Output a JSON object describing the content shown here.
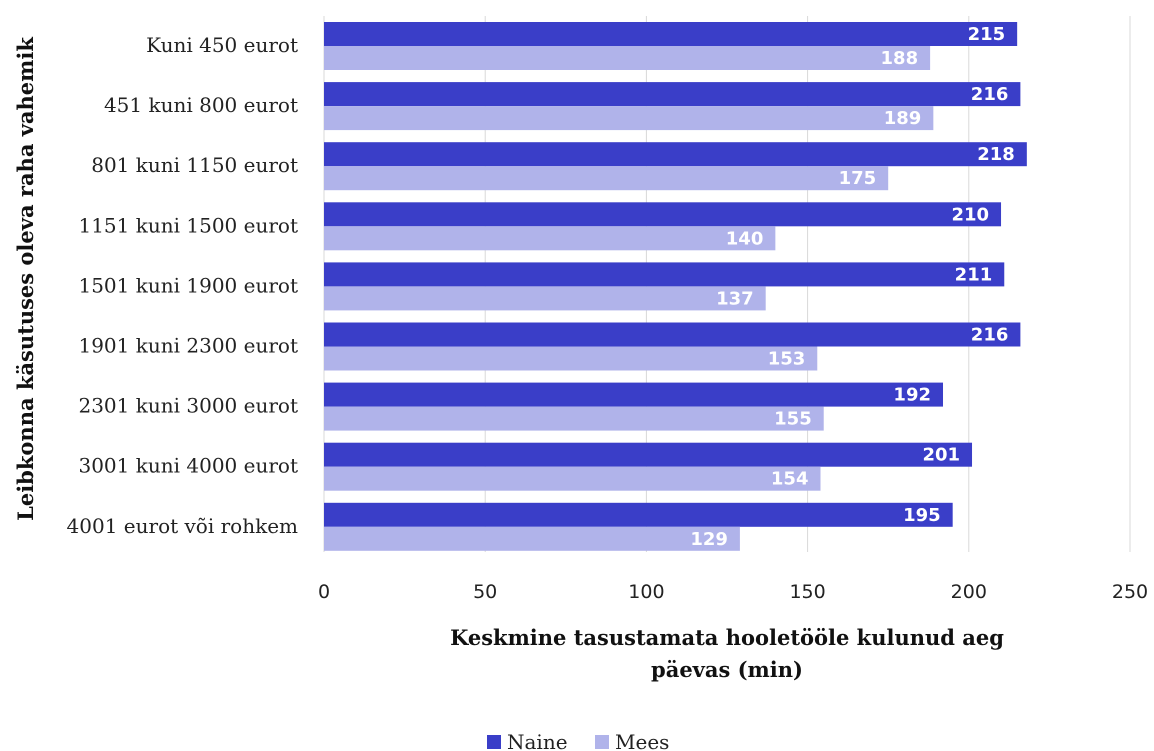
{
  "chart_data": {
    "type": "bar",
    "orientation": "horizontal",
    "categories": [
      "Kuni 450 eurot",
      "451 kuni 800 eurot",
      "801 kuni 1150 eurot",
      "1151 kuni 1500 eurot",
      "1501 kuni 1900 eurot",
      "1901 kuni 2300 eurot",
      "2301 kuni 3000 eurot",
      "3001 kuni 4000 eurot",
      "4001 eurot või rohkem"
    ],
    "series": [
      {
        "name": "Naine",
        "color": "#3a3ec8",
        "values": [
          215,
          216,
          218,
          210,
          211,
          216,
          192,
          201,
          195
        ]
      },
      {
        "name": "Mees",
        "color": "#b0b3ea",
        "values": [
          188,
          189,
          175,
          140,
          137,
          153,
          155,
          154,
          129
        ]
      }
    ],
    "xlabel_lines": [
      "Keskmine tasustamata hooletööle kulunud aeg",
      "päevas (min)"
    ],
    "ylabel": "Leibkonna käsutuses oleva raha vahemik",
    "xlim": [
      0,
      250
    ],
    "xticks": [
      0,
      50,
      100,
      150,
      200,
      250
    ],
    "grid": true,
    "legend_position": "bottom",
    "data_labels": true
  }
}
